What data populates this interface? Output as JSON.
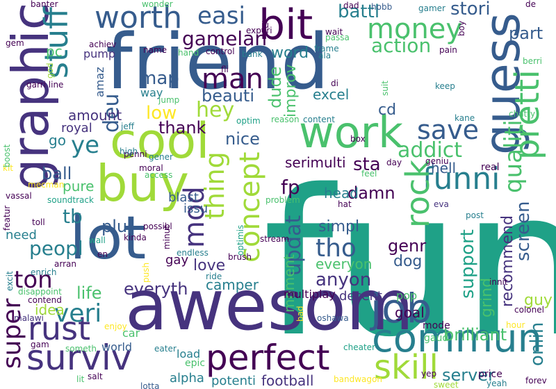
{
  "palette": {
    "dark_purple": "#440154",
    "indigo": "#46337e",
    "blue": "#365c8d",
    "teal_blue": "#277f8e",
    "teal": "#1fa187",
    "green": "#4ac16d",
    "lime": "#a0da39",
    "yellow": "#fde725"
  },
  "words": [
    {
      "text": "fun",
      "color": "#1fa187",
      "rotated": false
    },
    {
      "text": "friend",
      "color": "#365c8d",
      "rotated": false
    },
    {
      "text": "awesom",
      "color": "#46337e",
      "rotated": false
    },
    {
      "text": "graphic",
      "color": "#46337e",
      "rotated": true
    },
    {
      "text": "lot",
      "color": "#365c8d",
      "rotated": false
    },
    {
      "text": "guess",
      "color": "#365c8d",
      "rotated": true
    },
    {
      "text": "buy",
      "color": "#a0da39",
      "rotated": false
    },
    {
      "text": "cool",
      "color": "#a0da39",
      "rotated": false
    },
    {
      "text": "work",
      "color": "#4ac16d",
      "rotated": false
    },
    {
      "text": "bit",
      "color": "#440154",
      "rotated": false
    },
    {
      "text": "commun",
      "color": "#277f8e",
      "rotated": false
    },
    {
      "text": "job",
      "color": "#365c8d",
      "rotated": false
    },
    {
      "text": "perfect",
      "color": "#440154",
      "rotated": false
    },
    {
      "text": "surviv",
      "color": "#46337e",
      "rotated": false
    },
    {
      "text": "rust",
      "color": "#46337e",
      "rotated": false
    },
    {
      "text": "pretti",
      "color": "#4ac16d",
      "rotated": true
    },
    {
      "text": "skill",
      "color": "#a0da39",
      "rotated": false
    },
    {
      "text": "stuff",
      "color": "#277f8e",
      "rotated": true
    },
    {
      "text": "worth",
      "color": "#365c8d",
      "rotated": false
    },
    {
      "text": "money",
      "color": "#4ac16d",
      "rotated": false
    },
    {
      "text": "save",
      "color": "#365c8d",
      "rotated": false
    },
    {
      "text": "funni",
      "color": "#277f8e",
      "rotated": false
    },
    {
      "text": "rock",
      "color": "#4ac16d",
      "rotated": true
    },
    {
      "text": "concept",
      "color": "#a0da39",
      "rotated": true
    },
    {
      "text": "thing",
      "color": "#a0da39",
      "rotated": true
    },
    {
      "text": "mod",
      "color": "#46337e",
      "rotated": true
    },
    {
      "text": "man",
      "color": "#440154",
      "rotated": false
    },
    {
      "text": "easi",
      "color": "#365c8d",
      "rotated": false
    },
    {
      "text": "gamelan",
      "color": "#440154",
      "rotated": false
    },
    {
      "text": "battl",
      "color": "#277f8e",
      "rotated": false
    },
    {
      "text": "stori",
      "color": "#365c8d",
      "rotated": false
    },
    {
      "text": "part",
      "color": "#365c8d",
      "rotated": false
    },
    {
      "text": "action",
      "color": "#4ac16d",
      "rotated": false
    },
    {
      "text": "word",
      "color": "#277f8e",
      "rotated": false
    },
    {
      "text": "ye",
      "color": "#277f8e",
      "rotated": false
    },
    {
      "text": "deu",
      "color": "#365c8d",
      "rotated": true
    },
    {
      "text": "hey",
      "color": "#a0da39",
      "rotated": false
    },
    {
      "text": "low",
      "color": "#fde725",
      "rotated": false
    },
    {
      "text": "map",
      "color": "#365c8d",
      "rotated": false
    },
    {
      "text": "beauti",
      "color": "#365c8d",
      "rotated": false
    },
    {
      "text": "dude",
      "color": "#4ac16d",
      "rotated": true
    },
    {
      "text": "improv",
      "color": "#4ac16d",
      "rotated": true
    },
    {
      "text": "excel",
      "color": "#277f8e",
      "rotated": false
    },
    {
      "text": "cd",
      "color": "#365c8d",
      "rotated": false
    },
    {
      "text": "addict",
      "color": "#4ac16d",
      "rotated": false
    },
    {
      "text": "qualiti",
      "color": "#4ac16d",
      "rotated": true
    },
    {
      "text": "screen",
      "color": "#365c8d",
      "rotated": true
    },
    {
      "text": "hell",
      "color": "#365c8d",
      "rotated": false
    },
    {
      "text": "thank",
      "color": "#440154",
      "rotated": false
    },
    {
      "text": "nice",
      "color": "#365c8d",
      "rotated": false
    },
    {
      "text": "amount",
      "color": "#46337e",
      "rotated": false
    },
    {
      "text": "royal",
      "color": "#46337e",
      "rotated": false
    },
    {
      "text": "sta",
      "color": "#440154",
      "rotated": false
    },
    {
      "text": "serimulti",
      "color": "#440154",
      "rotated": false
    },
    {
      "text": "damn",
      "color": "#440154",
      "rotated": false
    },
    {
      "text": "head",
      "color": "#277f8e",
      "rotated": false
    },
    {
      "text": "fp",
      "color": "#440154",
      "rotated": false
    },
    {
      "text": "go",
      "color": "#277f8e",
      "rotated": false
    },
    {
      "text": "ball",
      "color": "#365c8d",
      "rotated": false
    },
    {
      "text": "pure",
      "color": "#4ac16d",
      "rotated": false
    },
    {
      "text": "tb",
      "color": "#277f8e",
      "rotated": false
    },
    {
      "text": "plu",
      "color": "#365c8d",
      "rotated": false
    },
    {
      "text": "peopl",
      "color": "#277f8e",
      "rotated": false
    },
    {
      "text": "ton",
      "color": "#440154",
      "rotated": false
    },
    {
      "text": "veri",
      "color": "#277f8e",
      "rotated": false
    },
    {
      "text": "super",
      "color": "#440154",
      "rotated": true
    },
    {
      "text": "tho",
      "color": "#365c8d",
      "rotated": false
    },
    {
      "text": "simpl",
      "color": "#365c8d",
      "rotated": false
    },
    {
      "text": "genr",
      "color": "#440154",
      "rotated": false
    },
    {
      "text": "dog",
      "color": "#365c8d",
      "rotated": false
    },
    {
      "text": "anyon",
      "color": "#46337e",
      "rotated": false
    },
    {
      "text": "updat",
      "color": "#365c8d",
      "rotated": true
    },
    {
      "text": "moment",
      "color": "#4ac16d",
      "rotated": true
    },
    {
      "text": "everyon",
      "color": "#4ac16d",
      "rotated": false
    },
    {
      "text": "love",
      "color": "#46337e",
      "rotated": false
    },
    {
      "text": "camper",
      "color": "#277f8e",
      "rotated": false
    },
    {
      "text": "everyth",
      "color": "#46337e",
      "rotated": false
    },
    {
      "text": "life",
      "color": "#4ac16d",
      "rotated": false
    },
    {
      "text": "idea",
      "color": "#a0da39",
      "rotated": false
    },
    {
      "text": "support",
      "color": "#1fa187",
      "rotated": true
    },
    {
      "text": "grind",
      "color": "#4ac16d",
      "rotated": true
    },
    {
      "text": "recommend",
      "color": "#46337e",
      "rotated": true
    },
    {
      "text": "onlin",
      "color": "#277f8e",
      "rotated": true
    },
    {
      "text": "guy",
      "color": "#a0da39",
      "rotated": false
    },
    {
      "text": "brilliant",
      "color": "#4ac16d",
      "rotated": false
    },
    {
      "text": "server",
      "color": "#277f8e",
      "rotated": false
    },
    {
      "text": "goal",
      "color": "#440154",
      "rotated": false
    },
    {
      "text": "pop",
      "color": "#4ac16d",
      "rotated": false
    },
    {
      "text": "decent",
      "color": "#46337e",
      "rotated": false
    },
    {
      "text": "football",
      "color": "#46337e",
      "rotated": false
    },
    {
      "text": "potenti",
      "color": "#277f8e",
      "rotated": false
    },
    {
      "text": "alpha",
      "color": "#277f8e",
      "rotated": false
    },
    {
      "text": "epic",
      "color": "#4ac16d",
      "rotated": false
    },
    {
      "text": "load",
      "color": "#277f8e",
      "rotated": false
    },
    {
      "text": "car",
      "color": "#4ac16d",
      "rotated": false
    },
    {
      "text": "world",
      "color": "#365c8d",
      "rotated": false
    },
    {
      "text": "gay",
      "color": "#440154",
      "rotated": false
    },
    {
      "text": "blast",
      "color": "#365c8d",
      "rotated": false
    },
    {
      "text": "issu",
      "color": "#365c8d",
      "rotated": false
    },
    {
      "text": "need",
      "color": "#277f8e",
      "rotated": false
    },
    {
      "text": "pump",
      "color": "#46337e",
      "rotated": false
    },
    {
      "text": "pc",
      "color": "#4ac16d",
      "rotated": false
    },
    {
      "text": "amaz",
      "color": "#365c8d",
      "rotated": true
    },
    {
      "text": "way",
      "color": "#277f8e",
      "rotated": false
    },
    {
      "text": "multiplay",
      "color": "#440154",
      "rotated": false
    },
    {
      "text": "mode",
      "color": "#440154",
      "rotated": false
    },
    {
      "text": "gaud",
      "color": "#4ac16d",
      "rotated": false
    },
    {
      "text": "colonel",
      "color": "#440154",
      "rotated": false
    },
    {
      "text": "hour",
      "color": "#fde725",
      "rotated": false
    },
    {
      "text": "cheater",
      "color": "#1fa187",
      "rotated": false
    },
    {
      "text": "price",
      "color": "#440154",
      "rotated": false
    },
    {
      "text": "yeah",
      "color": "#277f8e",
      "rotated": false
    },
    {
      "text": "forev",
      "color": "#440154",
      "rotated": false
    },
    {
      "text": "yep",
      "color": "#440154",
      "rotated": false
    },
    {
      "text": "sweet",
      "color": "#a0da39",
      "rotated": false
    },
    {
      "text": "bandwagon",
      "color": "#fde725",
      "rotated": false
    },
    {
      "text": "lotta",
      "color": "#365c8d",
      "rotated": false
    },
    {
      "text": "eater",
      "color": "#277f8e",
      "rotated": false
    },
    {
      "text": "someth",
      "color": "#4ac16d",
      "rotated": false
    },
    {
      "text": "gam",
      "color": "#440154",
      "rotated": false
    },
    {
      "text": "malawi",
      "color": "#46337e",
      "rotated": false
    },
    {
      "text": "contend",
      "color": "#440154",
      "rotated": false
    },
    {
      "text": "disappoint",
      "color": "#4ac16d",
      "rotated": false
    },
    {
      "text": "enjoy",
      "color": "#fde725",
      "rotated": false
    },
    {
      "text": "excit",
      "color": "#277f8e",
      "rotated": true
    },
    {
      "text": "enrich",
      "color": "#277f8e",
      "rotated": false
    },
    {
      "text": "arran",
      "color": "#440154",
      "rotated": false
    },
    {
      "text": "push",
      "color": "#fde725",
      "rotated": true
    },
    {
      "text": "ride",
      "color": "#277f8e",
      "rotated": false
    },
    {
      "text": "endless",
      "color": "#277f8e",
      "rotated": false
    },
    {
      "text": "brush",
      "color": "#440154",
      "rotated": false
    },
    {
      "text": "stream",
      "color": "#440154",
      "rotated": false
    },
    {
      "text": "kinda",
      "color": "#440154",
      "rotated": false
    },
    {
      "text": "en",
      "color": "#440154",
      "rotated": false
    },
    {
      "text": "wall",
      "color": "#1fa187",
      "rotated": false
    },
    {
      "text": "toll",
      "color": "#440154",
      "rotated": false
    },
    {
      "text": "possibl",
      "color": "#440154",
      "rotated": false
    },
    {
      "text": "minut",
      "color": "#440154",
      "rotated": true
    },
    {
      "text": "optimis",
      "color": "#1fa187",
      "rotated": true
    },
    {
      "text": "problem",
      "color": "#4ac16d",
      "rotated": false
    },
    {
      "text": "oshawa",
      "color": "#365c8d",
      "rotated": false
    },
    {
      "text": "hat",
      "color": "#440154",
      "rotated": false
    },
    {
      "text": "eva",
      "color": "#46337e",
      "rotated": false
    },
    {
      "text": "real",
      "color": "#440154",
      "rotated": false
    },
    {
      "text": "post",
      "color": "#277f8e",
      "rotated": false
    },
    {
      "text": "innit",
      "color": "#440154",
      "rotated": false
    },
    {
      "text": "soundtrack",
      "color": "#1fa187",
      "rotated": false
    },
    {
      "text": "vassal",
      "color": "#440154",
      "rotated": false
    },
    {
      "text": "featur",
      "color": "#440154",
      "rotated": true
    },
    {
      "text": "moral",
      "color": "#440154",
      "rotated": false
    },
    {
      "text": "access",
      "color": "#4ac16d",
      "rotated": false
    },
    {
      "text": "mecman",
      "color": "#fde725",
      "rotated": false
    },
    {
      "text": "kit",
      "color": "#fde725",
      "rotated": false
    },
    {
      "text": "boost",
      "color": "#4ac16d",
      "rotated": true
    },
    {
      "text": "penni",
      "color": "#440154",
      "rotated": false
    },
    {
      "text": "high",
      "color": "#277f8e",
      "rotated": false
    },
    {
      "text": "gener",
      "color": "#277f8e",
      "rotated": false
    },
    {
      "text": "jeff",
      "color": "#277f8e",
      "rotated": false
    },
    {
      "text": "optim",
      "color": "#1fa187",
      "rotated": false
    },
    {
      "text": "reason",
      "color": "#4ac16d",
      "rotated": false
    },
    {
      "text": "content",
      "color": "#277f8e",
      "rotated": false
    },
    {
      "text": "box",
      "color": "#440154",
      "rotated": false
    },
    {
      "text": "kane",
      "color": "#277f8e",
      "rotated": false
    },
    {
      "text": "chatty",
      "color": "#4ac16d",
      "rotated": false
    },
    {
      "text": "keep",
      "color": "#277f8e",
      "rotated": false
    },
    {
      "text": "suit",
      "color": "#4ac16d",
      "rotated": true
    },
    {
      "text": "di",
      "color": "#440154",
      "rotated": false
    },
    {
      "text": "fli",
      "color": "#440154",
      "rotated": false
    },
    {
      "text": "garri line",
      "color": "#440154",
      "rotated": false
    },
    {
      "text": "god",
      "color": "#a0da39",
      "rotated": true
    },
    {
      "text": "achiev",
      "color": "#440154",
      "rotated": false
    },
    {
      "text": "control",
      "color": "#440154",
      "rotated": false
    },
    {
      "text": "bank",
      "color": "#277f8e",
      "rotated": false
    },
    {
      "text": "hand",
      "color": "#4ac16d",
      "rotated": false
    },
    {
      "text": "name",
      "color": "#440154",
      "rotated": false
    },
    {
      "text": "experi",
      "color": "#440154",
      "rotated": false
    },
    {
      "text": "ju",
      "color": "#440154",
      "rotated": false
    },
    {
      "text": "jump",
      "color": "#4ac16d",
      "rotated": false
    },
    {
      "text": "frame",
      "color": "#277f8e",
      "rotated": false
    },
    {
      "text": "ala",
      "color": "#277f8e",
      "rotated": false
    },
    {
      "text": "wait",
      "color": "#440154",
      "rotated": false
    },
    {
      "text": "passa",
      "color": "#4ac16d",
      "rotated": false
    },
    {
      "text": "dad",
      "color": "#440154",
      "rotated": false
    },
    {
      "text": "hobb",
      "color": "#365c8d",
      "rotated": false
    },
    {
      "text": "boy",
      "color": "#440154",
      "rotated": true
    },
    {
      "text": "pain",
      "color": "#440154",
      "rotated": false
    },
    {
      "text": "gamer",
      "color": "#277f8e",
      "rotated": false
    },
    {
      "text": "berri",
      "color": "#4ac16d",
      "rotated": false
    },
    {
      "text": "de",
      "color": "#440154",
      "rotated": false
    },
    {
      "text": "wonder",
      "color": "#4ac16d",
      "rotated": false
    },
    {
      "text": "banter",
      "color": "#440154",
      "rotated": false
    },
    {
      "text": "gem",
      "color": "#440154",
      "rotated": false
    },
    {
      "text": "day",
      "color": "#440154",
      "rotated": false
    },
    {
      "text": "feel",
      "color": "#4ac16d",
      "rotated": false
    },
    {
      "text": "geniu",
      "color": "#440154",
      "rotated": false
    },
    {
      "text": "bad",
      "color": "#fde725",
      "rotated": true
    },
    {
      "text": "salt",
      "color": "#440154",
      "rotated": false
    },
    {
      "text": "lit",
      "color": "#4ac16d",
      "rotated": false
    }
  ]
}
